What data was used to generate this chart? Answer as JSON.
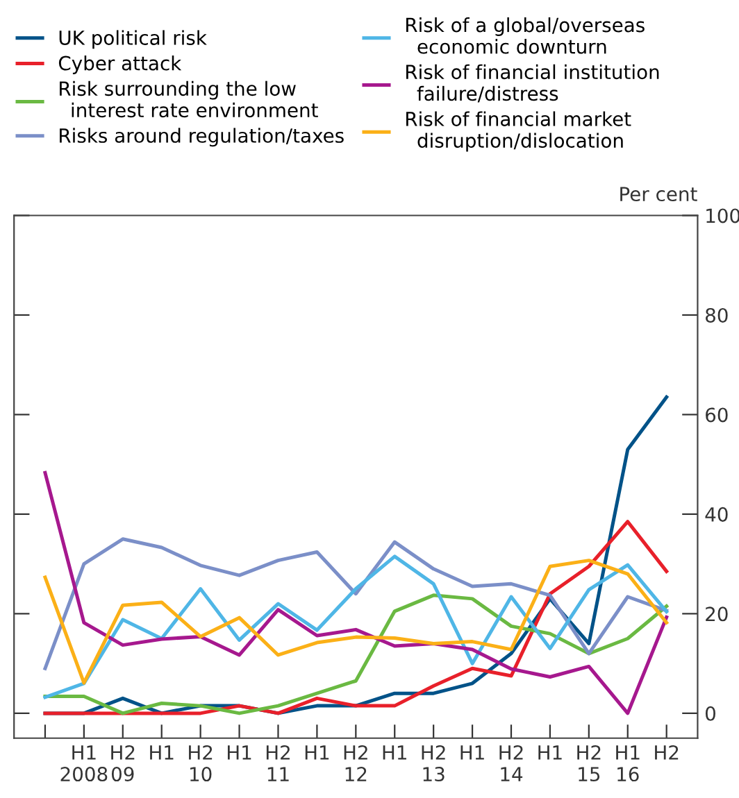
{
  "chart_data": {
    "type": "line",
    "ylabel": "Per cent",
    "categories": [
      null,
      "H1\n2008",
      "H2\n09",
      "H1",
      "H2\n10",
      "H1",
      "H2\n11",
      "H1",
      "H2\n12",
      "H1",
      "H2\n13",
      "H1",
      "H2\n14",
      "H1",
      "H2\n15",
      "H1\n16",
      "H2"
    ],
    "series": [
      {
        "name": "UK political risk",
        "color": "#005288",
        "values": [
          0,
          0,
          3,
          0,
          1.5,
          1.5,
          0,
          1.5,
          1.5,
          4,
          4,
          6,
          12,
          23,
          14,
          53,
          63.5
        ]
      },
      {
        "name": "Cyber attack",
        "color": "#e8202a",
        "values": [
          0,
          0,
          0,
          0,
          0,
          1.5,
          0,
          3,
          1.5,
          1.5,
          5.5,
          9,
          7.5,
          24,
          29.5,
          38.5,
          28.5
        ]
      },
      {
        "name": "Risk surrounding the low interest rate environment",
        "color": "#6ab942",
        "values": [
          3.4,
          3.4,
          0,
          2,
          1.5,
          0,
          1.5,
          4,
          6.5,
          20.5,
          23.7,
          23,
          17.5,
          16,
          12,
          15,
          21.5
        ]
      },
      {
        "name": "Risks around regulation/taxes",
        "color": "#7b8fc8",
        "values": [
          9,
          30,
          35,
          33.3,
          29.7,
          27.7,
          30.7,
          32.4,
          24,
          34.4,
          29,
          25.5,
          26,
          23.7,
          12,
          23.4,
          20.6
        ]
      },
      {
        "name": "Risk of a global/overseas economic downturn",
        "color": "#4fb6e6",
        "values": [
          3.2,
          6,
          18.8,
          15,
          25,
          14.7,
          22,
          16.7,
          25,
          31.5,
          26,
          10,
          23.4,
          13,
          24.8,
          29.8,
          20.4
        ]
      },
      {
        "name": "Risk of financial institution failure/distress",
        "color": "#a6188e",
        "values": [
          48.3,
          18.2,
          13.7,
          14.9,
          15.4,
          11.7,
          20.8,
          15.6,
          16.8,
          13.5,
          14,
          12.8,
          8.9,
          7.3,
          9.4,
          0,
          19.3
        ]
      },
      {
        "name": "Risk of financial market disruption/dislocation",
        "color": "#fbb017",
        "values": [
          27.3,
          6.1,
          21.7,
          22.3,
          15.4,
          19.2,
          11.7,
          14.2,
          15.3,
          15.1,
          14,
          14.4,
          12.8,
          29.5,
          30.7,
          28,
          18.2
        ]
      }
    ],
    "ylim": [
      -5,
      100
    ],
    "yticks": [
      0,
      20,
      40,
      60,
      80,
      100
    ],
    "grid": false,
    "legend": "top",
    "marker": "none",
    "line_style": "solid"
  }
}
